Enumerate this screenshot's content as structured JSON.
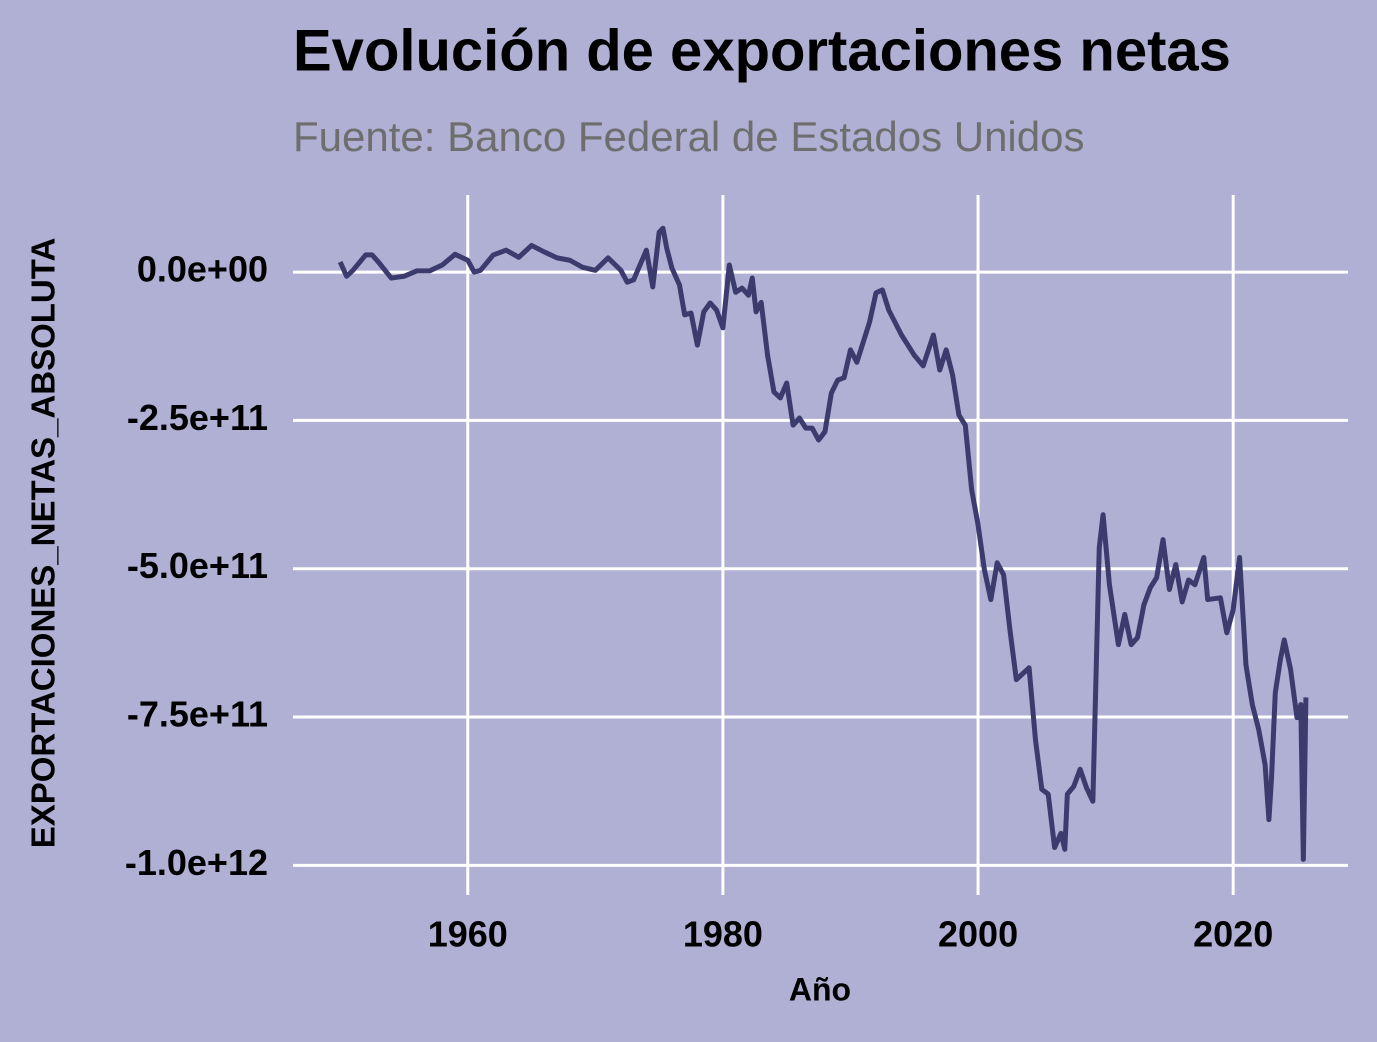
{
  "chart_data": {
    "type": "line",
    "title": "Evolución de exportaciones netas",
    "subtitle": "Fuente: Banco Federal de Estados Unidos",
    "x_label": "Año",
    "y_label": "EXPORTACIONES_NETAS_ABSOLUTA",
    "color": "#3c3b6e",
    "grid": true,
    "xlim": [
      1946.3,
      2029
    ],
    "ylim": [
      -1050000000000.0,
      130000000000.0
    ],
    "xticks": [
      1960,
      1980,
      2000,
      2020
    ],
    "yticks": [
      {
        "value": 0,
        "label": "0.0e+00"
      },
      {
        "value": -250000000000.0,
        "label": "-2.5e+11"
      },
      {
        "value": -500000000000.0,
        "label": "-5.0e+11"
      },
      {
        "value": -750000000000.0,
        "label": "-7.5e+11"
      },
      {
        "value": -1000000000000.0,
        "label": "-1.0e+12"
      }
    ],
    "x": [
      1950,
      1950.5,
      1951,
      1952,
      1952.5,
      1953,
      1954,
      1955,
      1956,
      1957,
      1958,
      1959,
      1960,
      1960.5,
      1961,
      1962,
      1963,
      1964,
      1965,
      1966,
      1967,
      1968,
      1969,
      1970,
      1971,
      1972,
      1972.5,
      1973,
      1974,
      1974.5,
      1975,
      1975.3,
      1975.6,
      1976,
      1976.6,
      1977,
      1977.5,
      1978,
      1978.5,
      1979,
      1979.5,
      1980,
      1980.5,
      1981,
      1981.5,
      1982,
      1982.3,
      1982.6,
      1983,
      1983.5,
      1984,
      1984.5,
      1985,
      1985.5,
      1986,
      1986.5,
      1987,
      1987.5,
      1988,
      1988.5,
      1989,
      1989.5,
      1990,
      1990.5,
      1991,
      1991.5,
      1992,
      1992.5,
      1993,
      1994,
      1995,
      1995.7,
      1996.5,
      1997,
      1997.5,
      1998,
      1998.5,
      1999,
      1999.5,
      2000,
      2000.5,
      2001,
      2001.5,
      2002,
      2002.5,
      2003,
      2004,
      2004.5,
      2005,
      2005.5,
      2006,
      2006.5,
      2006.8,
      2007,
      2007.5,
      2008,
      2008.5,
      2009,
      2009.5,
      2009.8,
      2010.3,
      2011,
      2011.5,
      2012,
      2012.5,
      2013,
      2013.5,
      2014,
      2014.5,
      2015,
      2015.5,
      2016,
      2016.5,
      2017,
      2017.7,
      2018,
      2019,
      2019.5,
      2020,
      2020.5,
      2021,
      2021.5,
      2022,
      2022.5,
      2022.8,
      2023,
      2023.3,
      2023.7,
      2024,
      2024.5,
      2025,
      2025.3,
      2025.5,
      2025.7
    ],
    "values": [
      17000000000.0,
      -7000000000.0,
      3000000000.0,
      29000000000.0,
      29000000000.0,
      17000000000.0,
      -10000000000.0,
      -7000000000.0,
      2000000000.0,
      2000000000.0,
      12000000000.0,
      30000000000.0,
      20000000000.0,
      0,
      3000000000.0,
      29000000000.0,
      37000000000.0,
      25000000000.0,
      45000000000.0,
      34000000000.0,
      24000000000.0,
      20000000000.0,
      8000000000.0,
      3000000000.0,
      24000000000.0,
      3000000000.0,
      -17000000000.0,
      -13000000000.0,
      37000000000.0,
      -25000000000.0,
      67000000000.0,
      74000000000.0,
      40000000000.0,
      7000000000.0,
      -22000000000.0,
      -72000000000.0,
      -69000000000.0,
      -123000000000.0,
      -67000000000.0,
      -52000000000.0,
      -64000000000.0,
      -94000000000.0,
      12000000000.0,
      -34000000000.0,
      -27000000000.0,
      -39000000000.0,
      -10000000000.0,
      -67000000000.0,
      -51000000000.0,
      -140000000000.0,
      -202000000000.0,
      -212000000000.0,
      -187000000000.0,
      -258000000000.0,
      -246000000000.0,
      -263000000000.0,
      -263000000000.0,
      -283000000000.0,
      -269000000000.0,
      -204000000000.0,
      -182000000000.0,
      -178000000000.0,
      -131000000000.0,
      -152000000000.0,
      -118000000000.0,
      -84000000000.0,
      -35000000000.0,
      -30000000000.0,
      -64000000000.0,
      -106000000000.0,
      -140000000000.0,
      -158000000000.0,
      -106000000000.0,
      -165000000000.0,
      -131000000000.0,
      -173000000000.0,
      -241000000000.0,
      -258000000000.0,
      -367000000000.0,
      -426000000000.0,
      -502000000000.0,
      -552000000000.0,
      -490000000000.0,
      -510000000000.0,
      -603000000000.0,
      -687000000000.0,
      -667000000000.0,
      -788000000000.0,
      -872000000000.0,
      -880000000000.0,
      -970000000000.0,
      -946000000000.0,
      -973000000000.0,
      -880000000000.0,
      -867000000000.0,
      -838000000000.0,
      -869000000000.0,
      -892000000000.0,
      -465000000000.0,
      -409000000000.0,
      -527000000000.0,
      -628000000000.0,
      -577000000000.0,
      -628000000000.0,
      -616000000000.0,
      -561000000000.0,
      -532000000000.0,
      -515000000000.0,
      -451000000000.0,
      -535000000000.0,
      -493000000000.0,
      -556000000000.0,
      -519000000000.0,
      -527000000000.0,
      -481000000000.0,
      -552000000000.0,
      -549000000000.0,
      -608000000000.0,
      -569000000000.0,
      -481000000000.0,
      -662000000000.0,
      -729000000000.0,
      -771000000000.0,
      -830000000000.0,
      -923000000000.0,
      -855000000000.0,
      -709000000000.0,
      -653000000000.0,
      -620000000000.0,
      -670000000000.0,
      -751000000000.0,
      -729000000000.0,
      -990000000000.0,
      -717000000000.0
    ]
  }
}
